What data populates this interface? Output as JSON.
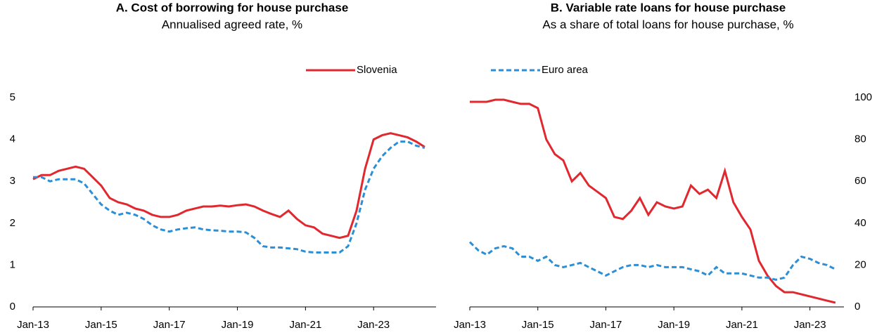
{
  "chart_data": [
    {
      "type": "line",
      "title": "A. Cost of borrowing for house purchase",
      "subtitle": "Annualised agreed rate, %",
      "x": [
        "2013-01",
        "2013-04",
        "2013-07",
        "2013-10",
        "2014-01",
        "2014-04",
        "2014-07",
        "2014-10",
        "2015-01",
        "2015-04",
        "2015-07",
        "2015-10",
        "2016-01",
        "2016-04",
        "2016-07",
        "2016-10",
        "2017-01",
        "2017-04",
        "2017-07",
        "2017-10",
        "2018-01",
        "2018-04",
        "2018-07",
        "2018-10",
        "2019-01",
        "2019-04",
        "2019-07",
        "2019-10",
        "2020-01",
        "2020-04",
        "2020-07",
        "2020-10",
        "2021-01",
        "2021-04",
        "2021-07",
        "2021-10",
        "2022-01",
        "2022-04",
        "2022-07",
        "2022-10",
        "2023-01",
        "2023-04",
        "2023-07",
        "2023-10",
        "2024-01",
        "2024-04",
        "2024-07"
      ],
      "series": [
        {
          "name": "Slovenia",
          "color": "#e0282e",
          "dash": false,
          "values": [
            3.05,
            3.15,
            3.15,
            3.25,
            3.3,
            3.35,
            3.3,
            3.1,
            2.9,
            2.6,
            2.5,
            2.45,
            2.35,
            2.3,
            2.2,
            2.15,
            2.15,
            2.2,
            2.3,
            2.35,
            2.4,
            2.4,
            2.42,
            2.4,
            2.43,
            2.45,
            2.4,
            2.3,
            2.22,
            2.15,
            2.3,
            2.1,
            1.95,
            1.9,
            1.75,
            1.7,
            1.65,
            1.7,
            2.3,
            3.3,
            4.0,
            4.1,
            4.15,
            4.1,
            4.05,
            3.95,
            3.82
          ]
        },
        {
          "name": "Euro area",
          "color": "#2c8fd6",
          "dash": true,
          "values": [
            3.1,
            3.1,
            3.0,
            3.05,
            3.05,
            3.05,
            2.95,
            2.7,
            2.45,
            2.3,
            2.2,
            2.25,
            2.2,
            2.1,
            1.95,
            1.85,
            1.8,
            1.85,
            1.88,
            1.9,
            1.85,
            1.83,
            1.82,
            1.8,
            1.8,
            1.78,
            1.65,
            1.45,
            1.42,
            1.42,
            1.4,
            1.38,
            1.32,
            1.3,
            1.3,
            1.3,
            1.3,
            1.45,
            2.0,
            2.8,
            3.3,
            3.6,
            3.8,
            3.95,
            3.95,
            3.85,
            3.8
          ]
        }
      ],
      "xlim": [
        "2013-01",
        "2024-11"
      ],
      "xticks": [
        {
          "value": "2013-01",
          "label": "Jan-13"
        },
        {
          "value": "2015-01",
          "label": "Jan-15"
        },
        {
          "value": "2017-01",
          "label": "Jan-17"
        },
        {
          "value": "2019-01",
          "label": "Jan-19"
        },
        {
          "value": "2021-01",
          "label": "Jan-21"
        },
        {
          "value": "2023-01",
          "label": "Jan-23"
        }
      ],
      "ylim": [
        0,
        5
      ],
      "yticks": [
        0,
        1,
        2,
        3,
        4,
        5
      ],
      "y_side": "left",
      "legend": "upper right",
      "grid": false
    },
    {
      "type": "line",
      "title": "B. Variable rate loans for house purchase",
      "subtitle": "As a share of total loans for house purchase, %",
      "x": [
        "2013-01",
        "2013-04",
        "2013-07",
        "2013-10",
        "2014-01",
        "2014-04",
        "2014-07",
        "2014-10",
        "2015-01",
        "2015-04",
        "2015-07",
        "2015-10",
        "2016-01",
        "2016-04",
        "2016-07",
        "2016-10",
        "2017-01",
        "2017-04",
        "2017-07",
        "2017-10",
        "2018-01",
        "2018-04",
        "2018-07",
        "2018-10",
        "2019-01",
        "2019-04",
        "2019-07",
        "2019-10",
        "2020-01",
        "2020-04",
        "2020-07",
        "2020-10",
        "2021-01",
        "2021-04",
        "2021-07",
        "2021-10",
        "2022-01",
        "2022-04",
        "2022-07",
        "2022-10",
        "2023-01",
        "2023-04",
        "2023-07",
        "2023-10"
      ],
      "series": [
        {
          "name": "Slovenia",
          "color": "#e0282e",
          "dash": false,
          "values": [
            98,
            98,
            98,
            99,
            99,
            98,
            97,
            97,
            95,
            80,
            73,
            70,
            60,
            64,
            58,
            55,
            52,
            43,
            42,
            46,
            52,
            44,
            50,
            48,
            47,
            48,
            58,
            54,
            56,
            52,
            65,
            50,
            43,
            37,
            22,
            15,
            10,
            7,
            7,
            6,
            5,
            4,
            3,
            2
          ]
        },
        {
          "name": "Euro area",
          "color": "#2c8fd6",
          "dash": true,
          "values": [
            31,
            27,
            25,
            28,
            29,
            28,
            24,
            24,
            22,
            24,
            20,
            19,
            20,
            21,
            19,
            17,
            15,
            17,
            19,
            20,
            20,
            19,
            20,
            19,
            19,
            19,
            18,
            17,
            15,
            19,
            16,
            16,
            16,
            15,
            14,
            14,
            13,
            14,
            20,
            24,
            23,
            21,
            20,
            18
          ]
        }
      ],
      "xlim": [
        "2013-01",
        "2024-01"
      ],
      "xticks": [
        {
          "value": "2013-01",
          "label": "Jan-13"
        },
        {
          "value": "2015-01",
          "label": "Jan-15"
        },
        {
          "value": "2017-01",
          "label": "Jan-17"
        },
        {
          "value": "2019-01",
          "label": "Jan-19"
        },
        {
          "value": "2021-01",
          "label": "Jan-21"
        },
        {
          "value": "2023-01",
          "label": "Jan-23"
        }
      ],
      "ylim": [
        0,
        100
      ],
      "yticks": [
        0,
        20,
        40,
        60,
        80,
        100
      ],
      "y_side": "right",
      "legend": "upper left",
      "grid": false
    }
  ]
}
